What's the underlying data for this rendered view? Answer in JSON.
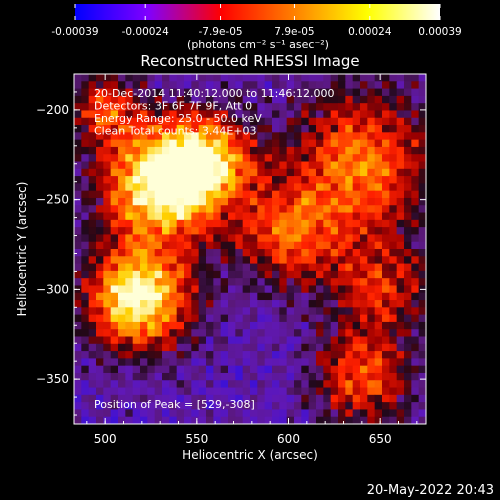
{
  "chart_data": {
    "type": "heatmap",
    "title": "Reconstructed RHESSI Image",
    "xlabel": "Heliocentric X (arcsec)",
    "ylabel": "Heliocentric Y (arcsec)",
    "xlim": [
      483,
      675
    ],
    "ylim": [
      -375,
      -180
    ],
    "x_ticks": [
      500,
      550,
      600,
      650
    ],
    "y_ticks": [
      -200,
      -250,
      -300,
      -350
    ],
    "colorbar": {
      "min": -0.00039,
      "max": 0.00039,
      "tick_values": [
        -0.00039,
        -0.00024,
        -7.9e-05,
        7.9e-05,
        0.00024,
        0.00039
      ],
      "tick_labels": [
        "-0.00039",
        "-0.00024",
        "-7.9e-05",
        "7.9e-05",
        "0.00024",
        "0.00039"
      ],
      "unit_label": "(photons cm⁻² s⁻¹ asec⁻²)",
      "colors": [
        "#0000ff",
        "#8000ff",
        "#ff0000",
        "#ff8000",
        "#ffff00",
        "#ffffff"
      ]
    },
    "info_lines": [
      "20-Dec-2014 11:40:12.000 to 11:46:12.000",
      "Detectors: 3F 6F 7F 9F, Att 0",
      "Energy Range: 25.0 - 50.0 keV",
      "Clean     Total counts: 3.44E+03"
    ],
    "peak_label": "Position of Peak = [529,-308]",
    "peak": {
      "x": 529,
      "y": -308
    },
    "bright_sources": [
      {
        "x": 530,
        "y": -242,
        "sigma": 22,
        "amp": 1.0
      },
      {
        "x": 518,
        "y": -305,
        "sigma": 20,
        "amp": 1.0
      },
      {
        "x": 555,
        "y": -228,
        "sigma": 18,
        "amp": 0.75
      },
      {
        "x": 640,
        "y": -230,
        "sigma": 28,
        "amp": 0.65
      },
      {
        "x": 600,
        "y": -270,
        "sigma": 20,
        "amp": 0.55
      },
      {
        "x": 650,
        "y": -300,
        "sigma": 20,
        "amp": 0.45
      },
      {
        "x": 640,
        "y": -350,
        "sigma": 18,
        "amp": 0.55
      },
      {
        "x": 500,
        "y": -200,
        "sigma": 14,
        "amp": 0.5
      }
    ]
  },
  "footer": {
    "timestamp": "20-May-2022 20:43"
  }
}
